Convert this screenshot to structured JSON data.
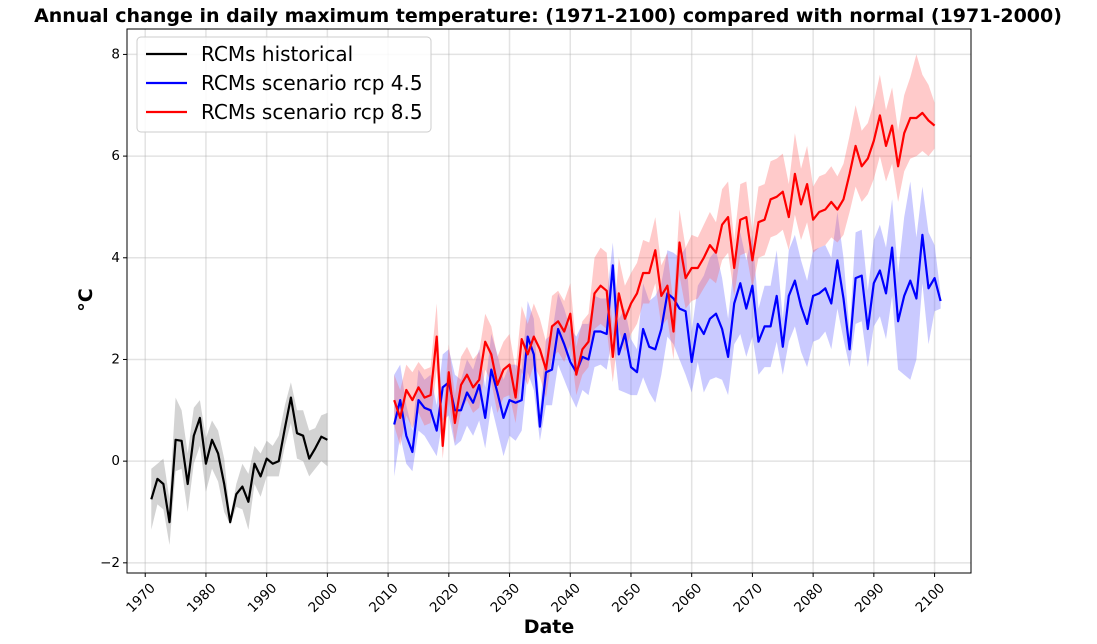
{
  "chart_data": {
    "type": "line",
    "title": "Annual change in daily maximum temperature: (1971-2100) compared with normal (1971-2000)",
    "xlabel": "Date",
    "ylabel": "°C",
    "xlim": [
      1967,
      2106
    ],
    "ylim": [
      -2.2,
      8.5
    ],
    "x_ticks": [
      1970,
      1980,
      1990,
      2000,
      2010,
      2020,
      2030,
      2040,
      2050,
      2060,
      2070,
      2080,
      2090,
      2100
    ],
    "y_ticks": [
      -2,
      0,
      2,
      4,
      6,
      8
    ],
    "grid": true,
    "legend_position": "top-left",
    "series": [
      {
        "name": "RCMs historical",
        "color": "#000000",
        "band_color": "#808080",
        "x_start": 1971,
        "values": [
          -0.75,
          -0.35,
          -0.45,
          -1.2,
          0.42,
          0.4,
          -0.45,
          0.5,
          0.85,
          -0.05,
          0.42,
          0.15,
          -0.45,
          -1.2,
          -0.65,
          -0.5,
          -0.8,
          -0.05,
          -0.3,
          0.05,
          -0.05,
          0.0,
          0.65,
          1.25,
          0.55,
          0.5,
          0.05,
          0.25,
          0.48,
          0.42
        ],
        "band_lower": [
          -1.35,
          -0.85,
          -0.95,
          -1.65,
          -0.2,
          -0.15,
          -1.0,
          -0.05,
          0.3,
          -0.6,
          -0.15,
          -0.4,
          -1.0,
          -1.25,
          -0.9,
          -0.95,
          -1.35,
          -0.45,
          -0.7,
          -0.3,
          -0.3,
          -0.3,
          0.3,
          0.75,
          0.05,
          0.0,
          -0.3,
          -0.15,
          0.0,
          -0.1
        ],
        "band_upper": [
          -0.15,
          -0.05,
          0.05,
          -0.75,
          1.25,
          1.0,
          0.15,
          1.05,
          1.2,
          0.45,
          0.8,
          0.6,
          0.05,
          -1.1,
          -0.45,
          -0.05,
          -0.25,
          0.3,
          0.15,
          0.4,
          0.3,
          0.5,
          1.1,
          1.55,
          1.0,
          1.0,
          0.6,
          0.65,
          0.9,
          0.95
        ]
      },
      {
        "name": "RCMs scenario rcp 4.5",
        "color": "#0000ff",
        "band_color": "#6666ff",
        "x_start": 2011,
        "values": [
          0.72,
          1.2,
          0.5,
          0.18,
          1.2,
          1.05,
          1.0,
          0.6,
          1.45,
          1.55,
          1.0,
          1.0,
          1.35,
          1.15,
          1.5,
          0.85,
          1.8,
          1.35,
          0.85,
          1.2,
          1.15,
          1.2,
          2.45,
          2.1,
          0.68,
          1.75,
          1.8,
          2.6,
          2.3,
          1.95,
          1.75,
          2.05,
          2.0,
          2.55,
          2.55,
          2.5,
          3.85,
          2.1,
          2.5,
          1.85,
          1.75,
          2.6,
          2.25,
          2.2,
          2.6,
          3.3,
          3.2,
          3.0,
          2.95,
          1.95,
          2.7,
          2.5,
          2.8,
          2.9,
          2.6,
          2.05,
          3.1,
          3.5,
          3.0,
          3.45,
          2.35,
          2.65,
          2.65,
          3.25,
          2.25,
          3.25,
          3.55,
          3.05,
          2.7,
          3.25,
          3.3,
          3.4,
          3.1,
          3.95,
          3.2,
          2.2,
          3.6,
          3.65,
          2.6,
          3.5,
          3.75,
          3.3,
          4.2,
          2.75,
          3.25,
          3.55,
          3.2,
          4.45,
          3.4,
          3.6,
          3.15
        ],
        "band_lower": [
          -0.3,
          0.5,
          -0.05,
          -0.2,
          0.6,
          0.5,
          0.3,
          0.1,
          0.8,
          0.9,
          0.3,
          0.4,
          0.7,
          0.5,
          0.8,
          0.25,
          1.1,
          0.6,
          0.1,
          0.5,
          0.4,
          0.6,
          1.75,
          1.4,
          0.4,
          1.1,
          1.1,
          1.9,
          1.6,
          1.3,
          1.05,
          1.4,
          1.3,
          1.85,
          1.9,
          1.8,
          2.5,
          1.4,
          1.35,
          1.3,
          1.3,
          1.65,
          1.35,
          1.15,
          1.7,
          2.45,
          2.3,
          2.0,
          1.7,
          1.35,
          1.95,
          1.35,
          1.6,
          1.65,
          1.6,
          1.3,
          2.3,
          2.5,
          2.05,
          2.45,
          1.7,
          1.85,
          1.85,
          2.35,
          1.7,
          2.35,
          2.65,
          2.15,
          1.85,
          2.35,
          2.4,
          2.55,
          2.2,
          3.0,
          2.4,
          1.85,
          2.7,
          2.75,
          1.85,
          2.65,
          2.85,
          2.4,
          3.25,
          1.8,
          1.7,
          1.6,
          2.0,
          3.5,
          2.3,
          2.95,
          3.0
        ],
        "band_upper": [
          1.7,
          1.9,
          1.1,
          0.6,
          1.8,
          1.6,
          1.7,
          1.1,
          2.1,
          2.2,
          1.7,
          1.6,
          2.0,
          1.8,
          2.2,
          1.45,
          2.5,
          2.1,
          1.6,
          1.9,
          1.9,
          1.8,
          3.15,
          2.8,
          1.0,
          2.4,
          2.5,
          3.3,
          3.0,
          2.6,
          2.45,
          2.7,
          2.7,
          3.25,
          3.2,
          3.2,
          4.3,
          2.8,
          3.0,
          2.4,
          2.2,
          3.5,
          3.15,
          3.25,
          3.5,
          4.15,
          4.1,
          4.0,
          4.2,
          2.55,
          3.45,
          3.65,
          4.0,
          4.15,
          3.6,
          2.8,
          3.9,
          4.5,
          3.95,
          4.45,
          3.0,
          3.45,
          3.45,
          4.15,
          2.8,
          4.15,
          4.45,
          3.95,
          3.55,
          4.15,
          4.2,
          4.25,
          4.0,
          4.9,
          4.0,
          2.55,
          4.5,
          4.55,
          3.35,
          4.35,
          4.65,
          4.2,
          5.15,
          3.7,
          4.8,
          5.5,
          4.4,
          5.4,
          4.5,
          4.25,
          3.3
        ]
      },
      {
        "name": "RCMs scenario rcp 8.5",
        "color": "#ff0000",
        "band_color": "#ff6666",
        "x_start": 2011,
        "values": [
          1.2,
          0.85,
          1.4,
          1.2,
          1.45,
          1.25,
          1.3,
          2.45,
          0.3,
          1.75,
          0.75,
          1.5,
          1.7,
          1.45,
          1.6,
          2.35,
          2.1,
          1.5,
          1.8,
          1.9,
          1.25,
          2.4,
          2.1,
          2.45,
          2.2,
          1.8,
          2.65,
          2.75,
          2.55,
          2.9,
          1.7,
          2.2,
          2.35,
          3.3,
          3.45,
          3.35,
          2.05,
          3.3,
          2.8,
          3.1,
          3.3,
          3.7,
          3.7,
          4.15,
          3.25,
          3.45,
          2.55,
          4.3,
          3.6,
          3.8,
          3.8,
          4.0,
          4.25,
          4.1,
          4.65,
          4.8,
          3.8,
          4.75,
          4.8,
          3.95,
          4.7,
          4.75,
          5.15,
          5.2,
          5.3,
          4.8,
          5.65,
          5.05,
          5.45,
          4.75,
          4.9,
          4.95,
          5.1,
          4.95,
          5.15,
          5.65,
          6.2,
          5.8,
          5.95,
          6.3,
          6.8,
          6.2,
          6.6,
          5.8,
          6.45,
          6.75,
          6.75,
          6.85,
          6.7,
          6.6
        ],
        "band_lower": [
          0.7,
          0.3,
          0.9,
          0.65,
          0.95,
          0.7,
          0.75,
          1.8,
          0.05,
          1.2,
          0.35,
          1.0,
          1.2,
          0.95,
          1.05,
          1.8,
          1.55,
          0.95,
          1.25,
          1.3,
          0.75,
          1.75,
          1.5,
          1.9,
          1.65,
          1.25,
          2.05,
          2.15,
          1.95,
          2.3,
          1.3,
          1.7,
          1.85,
          2.6,
          2.7,
          2.6,
          1.55,
          2.6,
          2.15,
          2.5,
          2.7,
          3.1,
          3.1,
          3.5,
          2.65,
          2.8,
          2.0,
          3.65,
          3.0,
          3.15,
          3.2,
          3.4,
          3.6,
          3.5,
          3.95,
          4.1,
          3.25,
          4.05,
          4.1,
          3.4,
          4.0,
          4.05,
          4.4,
          4.45,
          4.55,
          4.15,
          4.85,
          4.35,
          4.7,
          4.1,
          4.2,
          4.25,
          4.4,
          4.3,
          4.45,
          4.9,
          5.4,
          5.1,
          5.25,
          5.55,
          6.0,
          5.5,
          5.85,
          5.1,
          5.7,
          5.95,
          6.0,
          6.1,
          6.0,
          6.15
        ],
        "band_upper": [
          1.7,
          1.4,
          1.9,
          1.75,
          1.95,
          1.8,
          1.85,
          3.1,
          0.8,
          2.3,
          1.3,
          2.05,
          2.25,
          2.0,
          2.15,
          2.9,
          2.65,
          2.05,
          2.35,
          2.5,
          1.8,
          3.05,
          2.7,
          3.1,
          2.8,
          2.35,
          3.25,
          3.35,
          3.15,
          3.5,
          2.25,
          2.75,
          2.9,
          4.0,
          4.2,
          4.1,
          2.55,
          4.0,
          3.45,
          3.7,
          3.9,
          4.35,
          4.3,
          4.8,
          3.85,
          4.1,
          3.1,
          4.95,
          4.2,
          4.45,
          4.4,
          4.65,
          4.9,
          4.7,
          5.35,
          5.5,
          4.35,
          5.45,
          5.5,
          4.5,
          5.4,
          5.45,
          5.9,
          5.95,
          6.05,
          5.45,
          6.45,
          5.75,
          6.2,
          5.4,
          5.6,
          5.65,
          5.8,
          5.6,
          5.85,
          6.4,
          7.0,
          6.5,
          6.65,
          7.05,
          7.6,
          6.9,
          7.35,
          6.5,
          7.2,
          7.55,
          8.0,
          7.6,
          7.4,
          7.05
        ]
      }
    ]
  }
}
